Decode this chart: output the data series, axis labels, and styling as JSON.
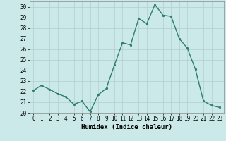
{
  "x": [
    0,
    1,
    2,
    3,
    4,
    5,
    6,
    7,
    8,
    9,
    10,
    11,
    12,
    13,
    14,
    15,
    16,
    17,
    18,
    19,
    20,
    21,
    22,
    23
  ],
  "y": [
    22.1,
    22.6,
    22.2,
    21.8,
    21.5,
    20.8,
    21.1,
    20.1,
    21.7,
    22.3,
    24.5,
    26.6,
    26.4,
    28.9,
    28.4,
    30.2,
    29.2,
    29.1,
    27.0,
    26.1,
    24.1,
    21.1,
    20.7,
    20.5
  ],
  "line_color": "#2e7d6e",
  "marker": ".",
  "marker_size": 3,
  "bg_color": "#cce9e9",
  "grid_color": "#b0cece",
  "xlabel": "Humidex (Indice chaleur)",
  "xlim": [
    -0.5,
    23.5
  ],
  "ylim": [
    20,
    30.5
  ],
  "yticks": [
    20,
    21,
    22,
    23,
    24,
    25,
    26,
    27,
    28,
    29,
    30
  ],
  "xticks": [
    0,
    1,
    2,
    3,
    4,
    5,
    6,
    7,
    8,
    9,
    10,
    11,
    12,
    13,
    14,
    15,
    16,
    17,
    18,
    19,
    20,
    21,
    22,
    23
  ],
  "tick_label_fontsize": 5.5,
  "xlabel_fontsize": 6.5,
  "linewidth": 1.0
}
